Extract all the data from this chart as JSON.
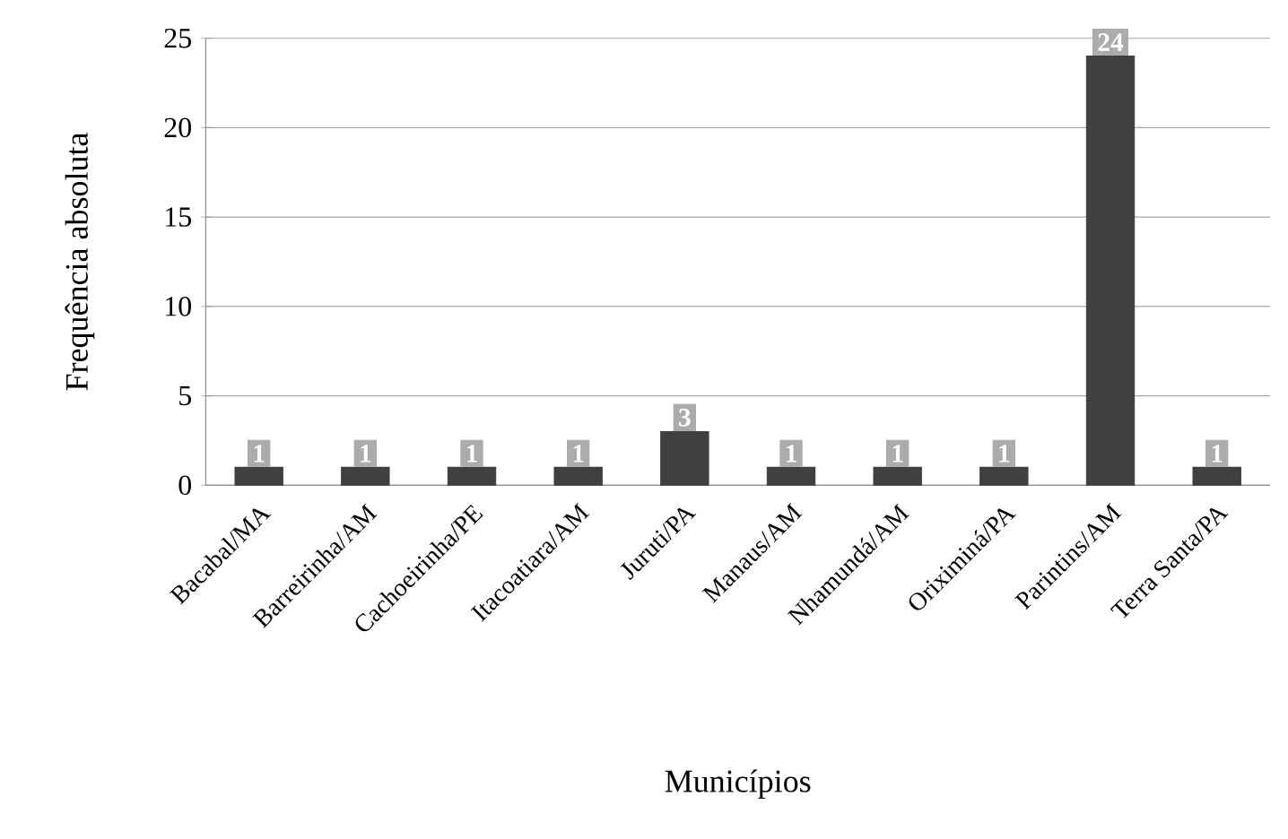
{
  "chart_data": {
    "type": "bar",
    "xlabel": "Municípios",
    "ylabel": "Frequência absoluta",
    "categories": [
      "Bacabal/MA",
      "Barreirinha/AM",
      "Cachoeirinha/PE",
      "Itacoatiara/AM",
      "Juruti/PA",
      "Manaus/AM",
      "Nhamundá/AM",
      "Oriximiná/PA",
      "Parintins/AM",
      "Terra Santa/PA"
    ],
    "values": [
      1,
      1,
      1,
      1,
      3,
      1,
      1,
      1,
      24,
      1
    ],
    "color": "#404040",
    "ylim": [
      0,
      25
    ],
    "yticks": [
      0,
      5,
      10,
      15,
      20,
      25
    ],
    "grid": "y",
    "data_labels": true
  }
}
